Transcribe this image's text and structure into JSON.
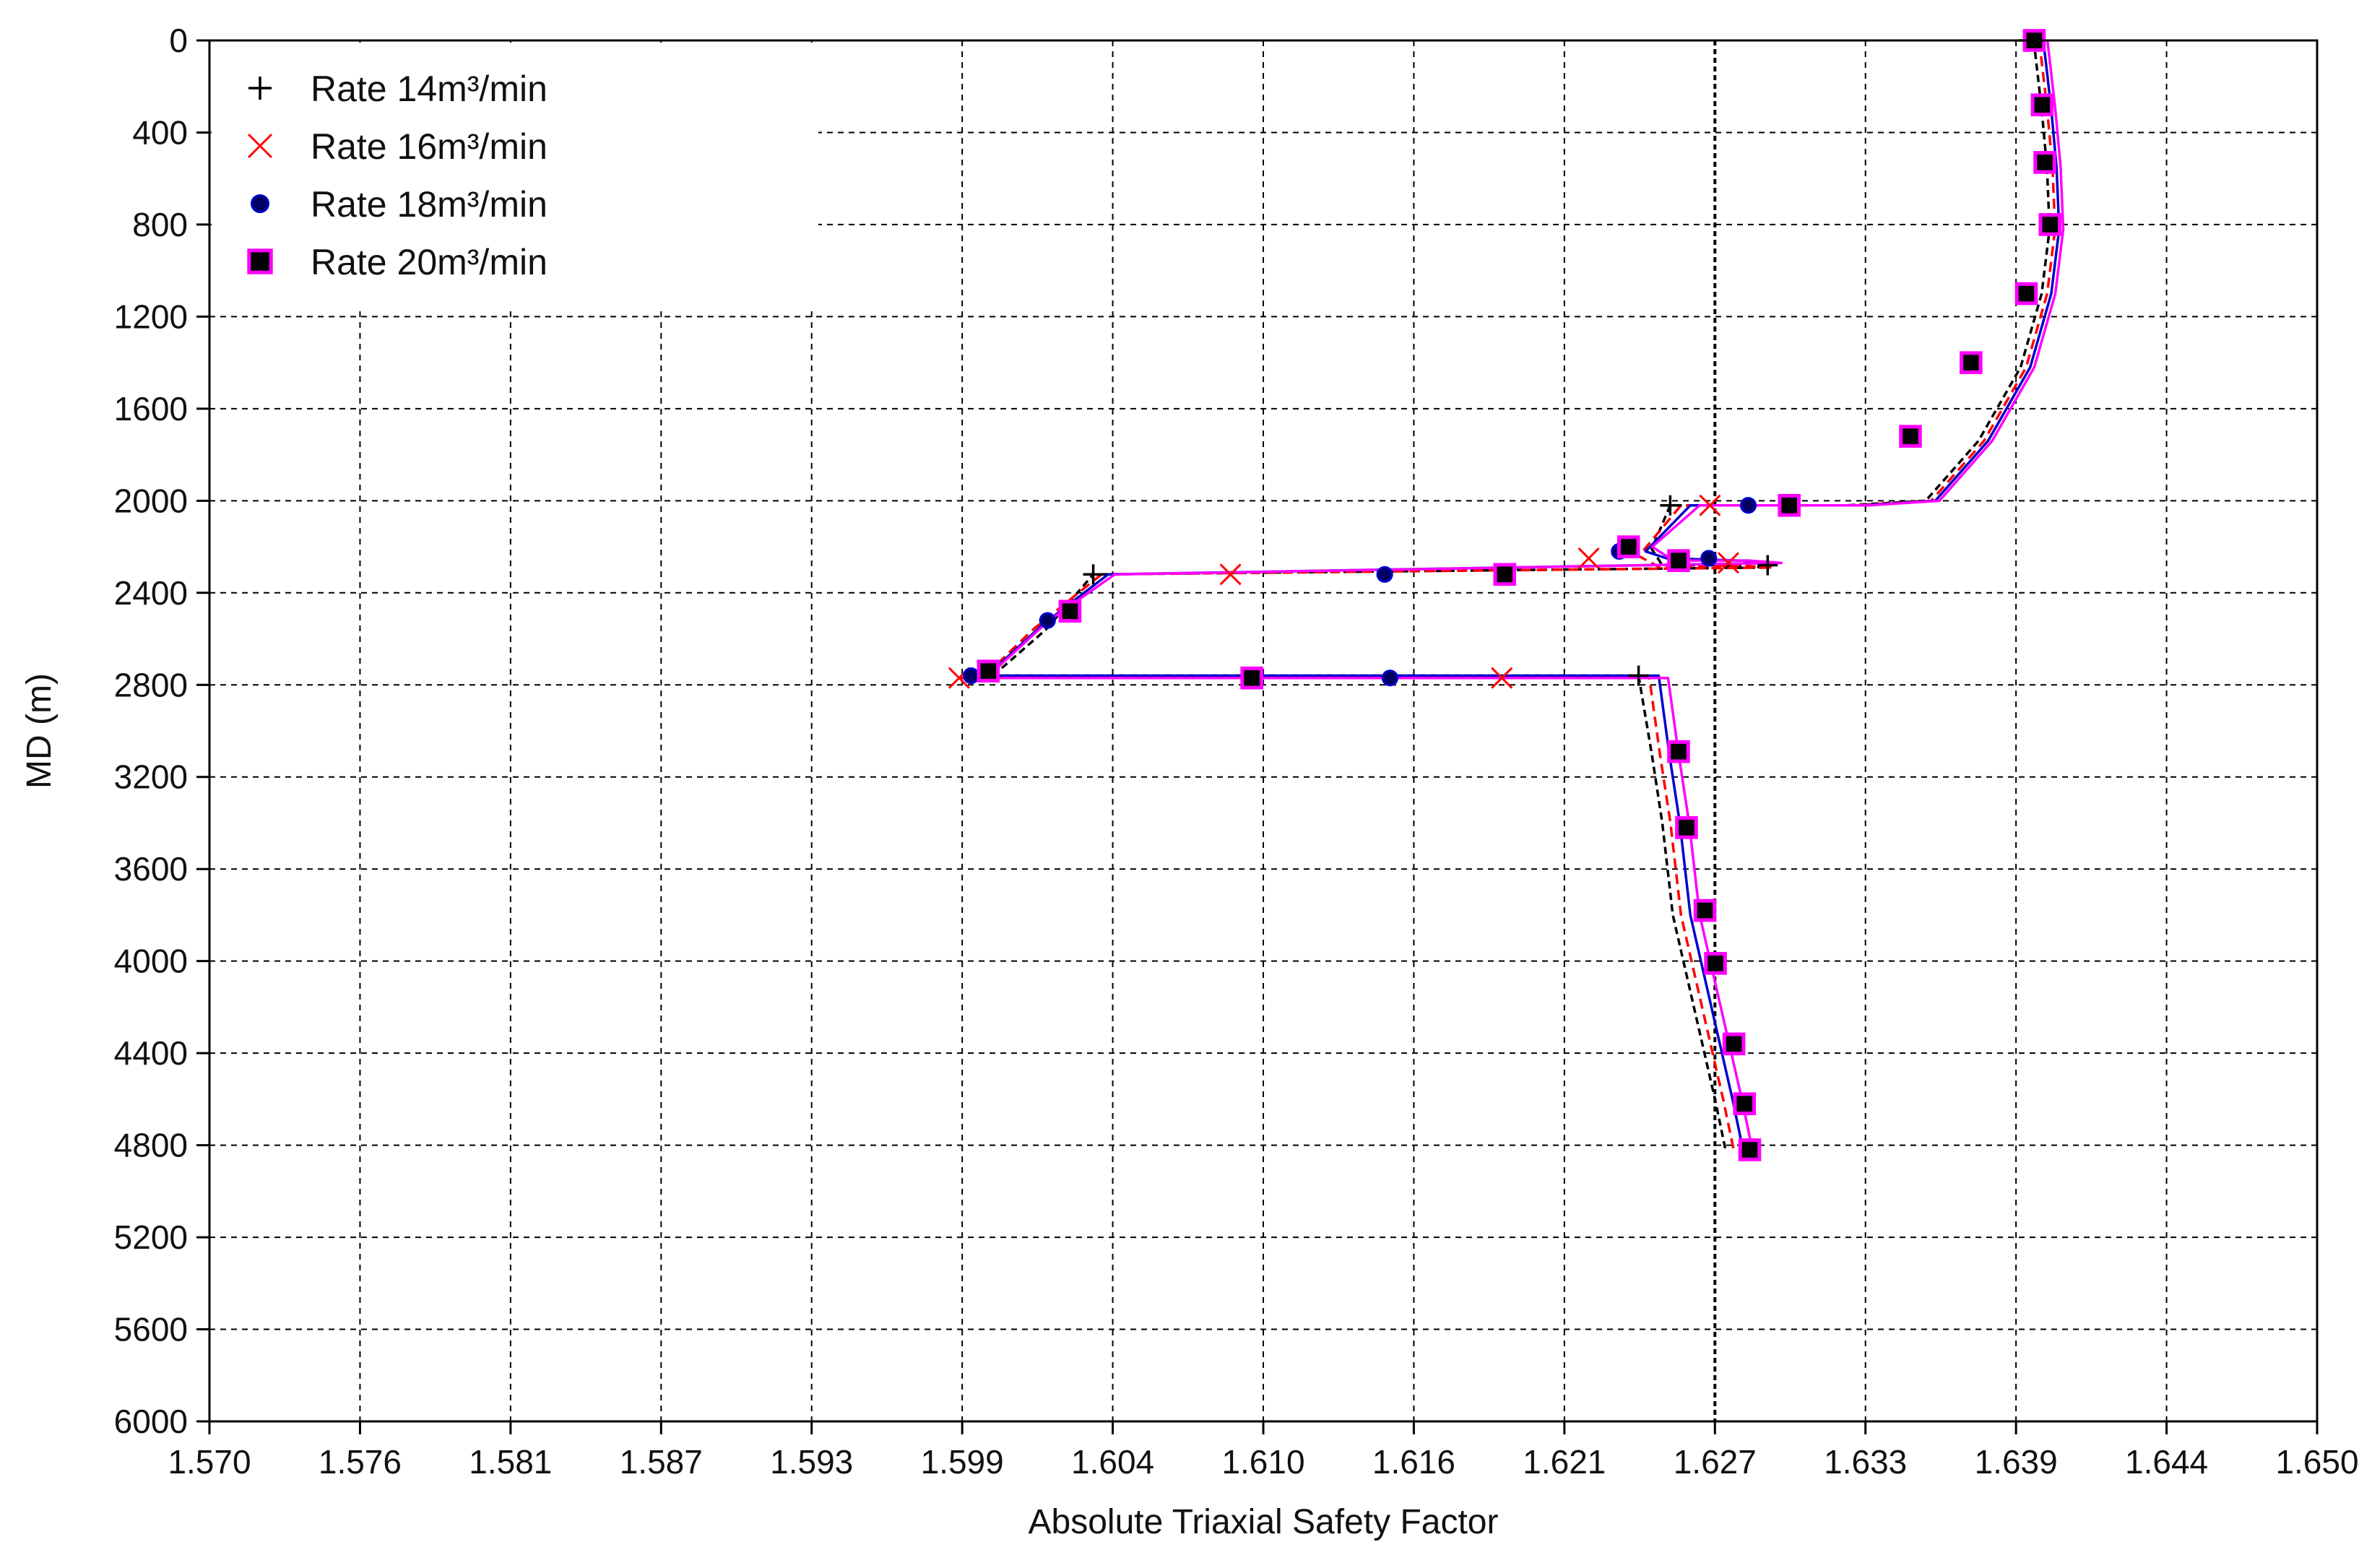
{
  "chart_data": {
    "type": "line",
    "xlabel": "Absolute Triaxial Safety Factor",
    "ylabel": "MD (m)",
    "xlim": [
      1.57,
      1.65
    ],
    "ylim": [
      0,
      6000
    ],
    "y_inverted": true,
    "grid": true,
    "legend_position": "top-left",
    "x_ticks": [
      "1.570",
      "1.576",
      "1.581",
      "1.587",
      "1.593",
      "1.599",
      "1.604",
      "1.610",
      "1.616",
      "1.621",
      "1.627",
      "1.633",
      "1.639",
      "1.644",
      "1.650"
    ],
    "y_ticks": [
      "0",
      "400",
      "800",
      "1200",
      "1600",
      "2000",
      "2400",
      "2800",
      "3200",
      "3600",
      "4000",
      "4400",
      "4800",
      "5200",
      "5600",
      "6000"
    ],
    "series": [
      {
        "name": "Rate 14m³/min",
        "color": "#000000",
        "marker": "plus",
        "x": [
          1.6393,
          1.6396,
          1.6398,
          1.6399,
          1.6396,
          1.6388,
          1.6372,
          1.6352,
          1.6322,
          1.6255,
          1.6248,
          1.6252,
          1.6275,
          1.6292,
          1.6036,
          1.6018,
          1.6,
          1.599,
          1.6243,
          1.6248,
          1.6252,
          1.6256,
          1.626,
          1.6264,
          1.6268,
          1.6272,
          1.6276
        ],
        "y": [
          0,
          300,
          550,
          820,
          1100,
          1420,
          1740,
          2000,
          2020,
          2020,
          2210,
          2280,
          2280,
          2290,
          2320,
          2560,
          2740,
          2760,
          2760,
          3100,
          3400,
          3800,
          4000,
          4200,
          4400,
          4600,
          4820
        ],
        "marker_x": [
          1.6391,
          1.6255,
          1.6292,
          1.6036,
          1.6243
        ],
        "marker_y": [
          0,
          2020,
          2280,
          2320,
          2760
        ]
      },
      {
        "name": "Rate 16m³/min",
        "color": "#ff0000",
        "marker": "x",
        "x": [
          1.6394,
          1.6397,
          1.6399,
          1.64,
          1.6397,
          1.6389,
          1.6373,
          1.6353,
          1.6324,
          1.6258,
          1.6242,
          1.625,
          1.6278,
          1.6293,
          1.6038,
          1.6012,
          1.5993,
          1.5985,
          1.6246,
          1.625,
          1.6254,
          1.6258,
          1.6262,
          1.6266,
          1.627,
          1.6274,
          1.6278
        ],
        "y": [
          0,
          300,
          550,
          820,
          1100,
          1420,
          1740,
          2000,
          2020,
          2020,
          2240,
          2290,
          2280,
          2290,
          2320,
          2560,
          2770,
          2770,
          2770,
          3100,
          3400,
          3800,
          4000,
          4200,
          4400,
          4600,
          4820
        ],
        "marker_x": [
          1.6269,
          1.6223,
          1.6276,
          1.6087,
          1.5984,
          1.619
        ],
        "marker_y": [
          2020,
          2250,
          2270,
          2320,
          2770,
          2770
        ]
      },
      {
        "name": "Rate 18m³/min",
        "color": "#0000cc",
        "marker": "dot",
        "x": [
          1.6395,
          1.6398,
          1.64,
          1.6401,
          1.6398,
          1.639,
          1.6374,
          1.6354,
          1.6326,
          1.6261,
          1.6244,
          1.6252,
          1.628,
          1.6294,
          1.604,
          1.6015,
          1.5995,
          1.5988,
          1.6249,
          1.6253,
          1.6257,
          1.6261,
          1.6265,
          1.6269,
          1.6273,
          1.6277,
          1.6281
        ],
        "y": [
          0,
          300,
          550,
          820,
          1100,
          1420,
          1740,
          2000,
          2020,
          2020,
          2220,
          2250,
          2260,
          2270,
          2320,
          2540,
          2750,
          2760,
          2760,
          3100,
          3400,
          3800,
          4000,
          4200,
          4400,
          4600,
          4820
        ],
        "marker_x": [
          1.6283,
          1.6234,
          1.6268,
          1.6145,
          1.6017,
          1.6147,
          1.5988
        ],
        "marker_y": [
          2020,
          2220,
          2250,
          2320,
          2520,
          2770,
          2760
        ]
      },
      {
        "name": "Rate 20m³/min",
        "color": "#ff00ff",
        "marker": "square",
        "x": [
          1.6396,
          1.6399,
          1.6401,
          1.6402,
          1.6399,
          1.6391,
          1.6375,
          1.6355,
          1.6328,
          1.6264,
          1.6246,
          1.6254,
          1.6283,
          1.6295,
          1.6042,
          1.6017,
          1.5997,
          1.5991,
          1.6252,
          1.6256,
          1.626,
          1.6264,
          1.6268,
          1.6272,
          1.6276,
          1.628,
          1.6284
        ],
        "y": [
          0,
          300,
          550,
          820,
          1100,
          1420,
          1740,
          2000,
          2020,
          2020,
          2200,
          2260,
          2260,
          2270,
          2320,
          2520,
          2730,
          2770,
          2770,
          3100,
          3400,
          3800,
          4000,
          4200,
          4400,
          4600,
          4820
        ],
        "marker_x": [
          1.6391,
          1.6394,
          1.6395,
          1.6397,
          1.6388,
          1.6367,
          1.6344,
          1.6298,
          1.6237,
          1.6256,
          1.619,
          1.6025,
          1.5994,
          1.6094,
          1.6256,
          1.6259,
          1.6266,
          1.627,
          1.6277,
          1.6281,
          1.6283
        ],
        "marker_y": [
          0,
          280,
          530,
          800,
          1100,
          1400,
          1720,
          2020,
          2200,
          2260,
          2320,
          2480,
          2740,
          2770,
          3090,
          3420,
          3780,
          4010,
          4360,
          4620,
          4820
        ]
      }
    ]
  }
}
